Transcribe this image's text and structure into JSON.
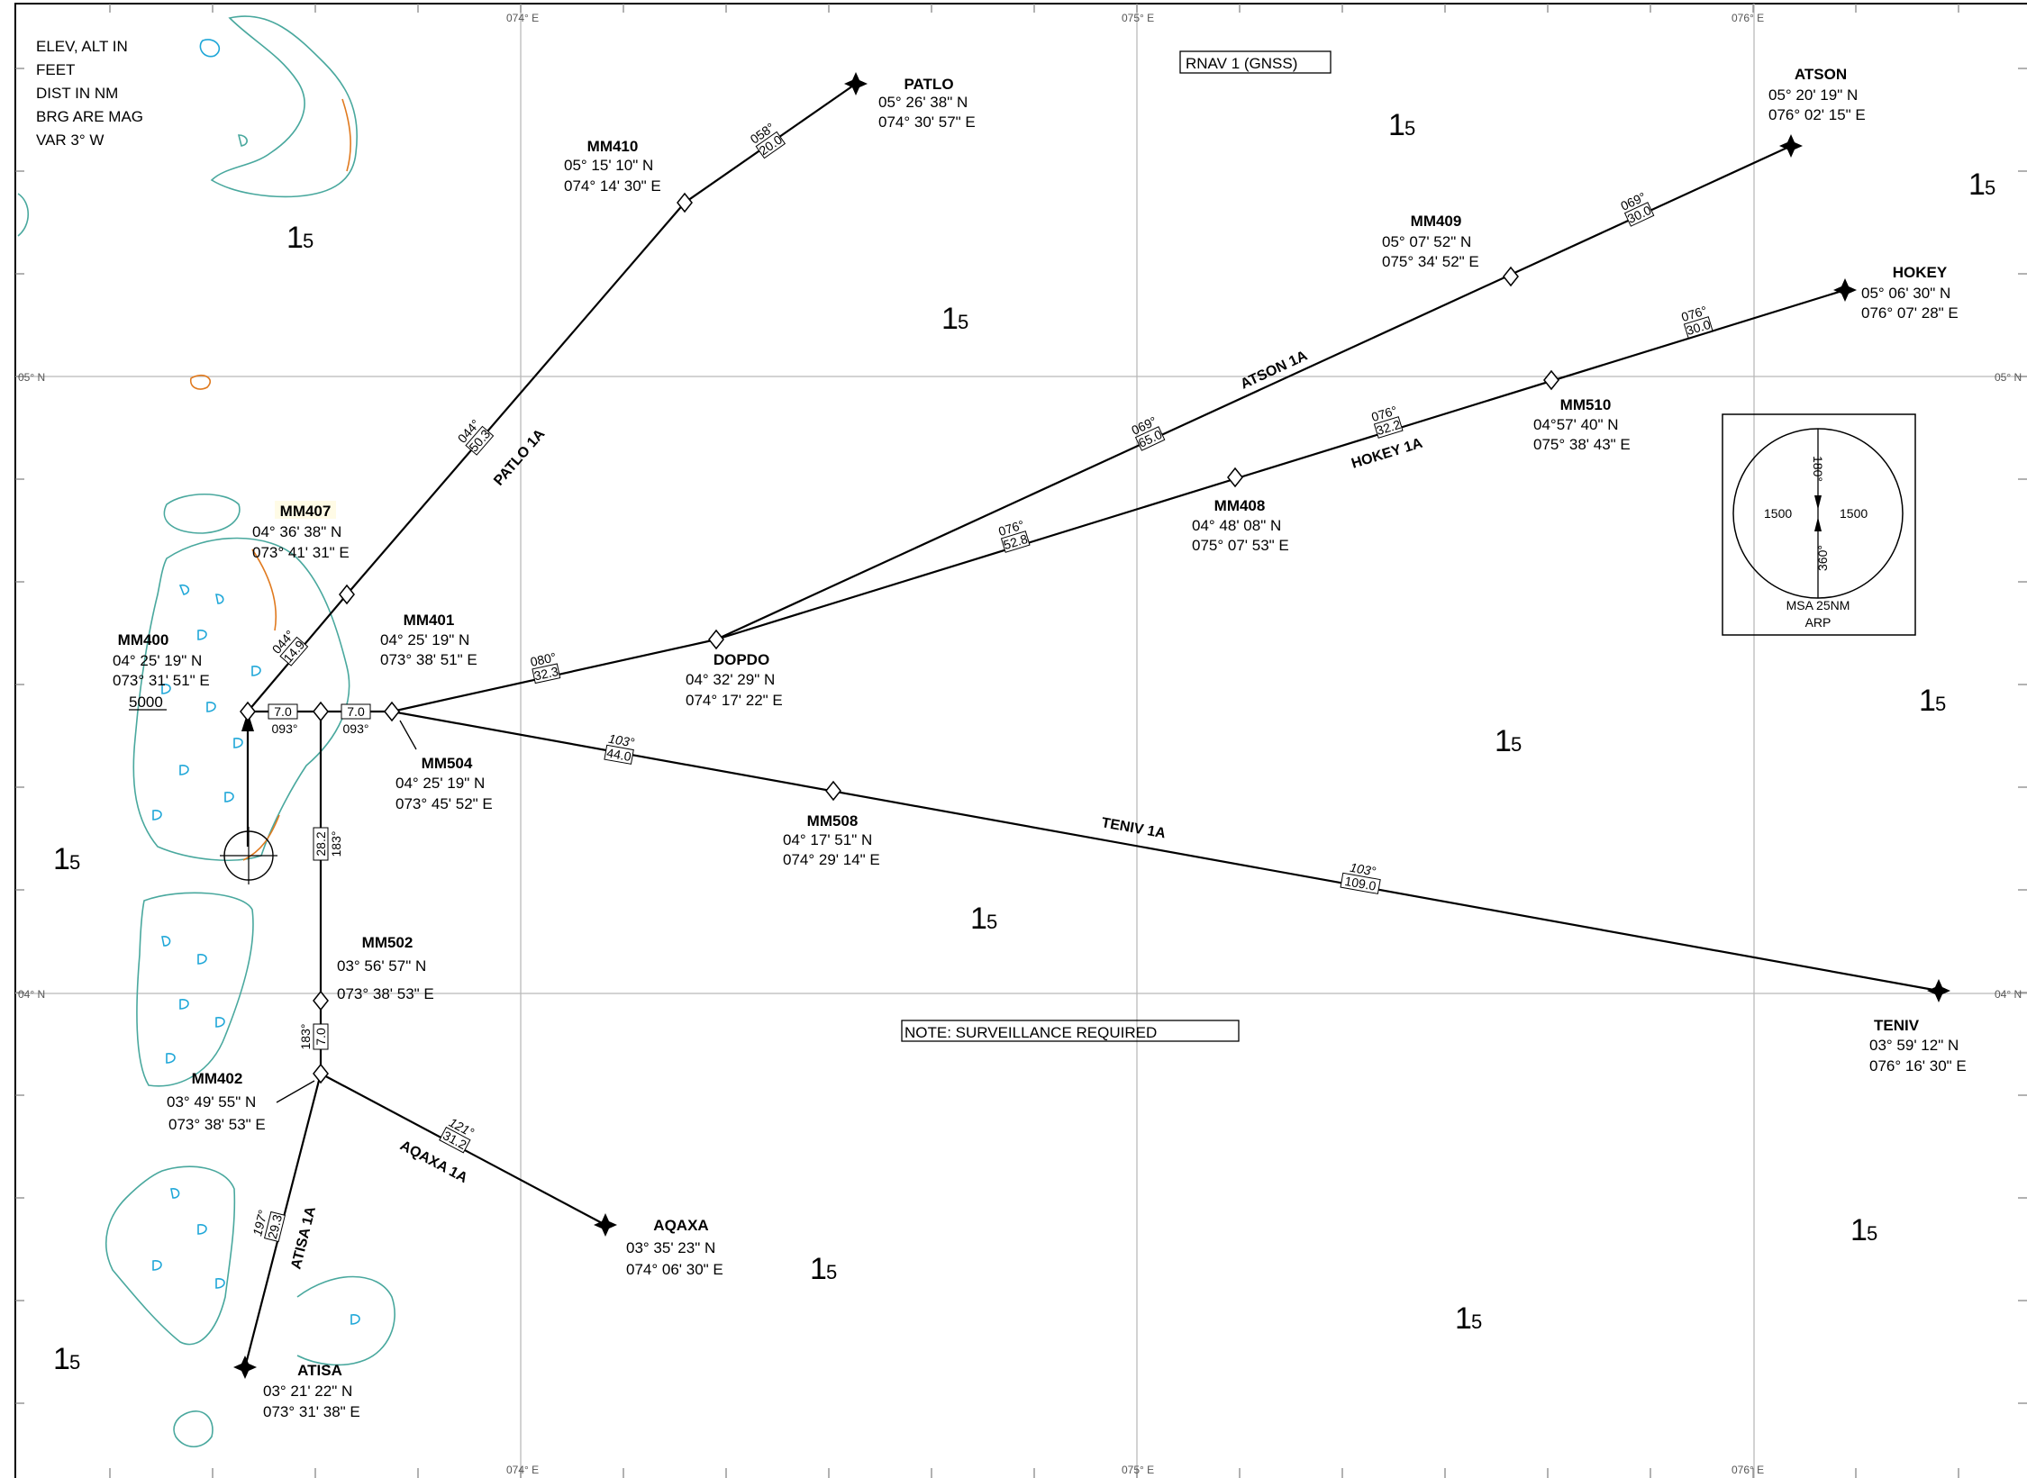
{
  "grid_labels": {
    "lon_074": "074° E",
    "lon_075": "075° E",
    "lon_076": "076° E",
    "lat_05": "05° N",
    "lat_04": "04° N"
  },
  "legend": {
    "lines": [
      "ELEV, ALT IN",
      "FEET",
      "DIST IN NM",
      "BRG ARE MAG",
      "VAR 3° W"
    ]
  },
  "header": {
    "nav_spec": "RNAV 1 (GNSS)"
  },
  "note": "NOTE: SURVEILLANCE REQUIRED",
  "msa": {
    "sector_1_alt": "1500",
    "sector_2_alt": "1500",
    "bearing_top": "180°",
    "bearing_bottom": "360°",
    "caption_1": "MSA 25NM",
    "caption_2": "ARP"
  },
  "waypoints": {
    "patlo": {
      "name": "PATLO",
      "lat": "05° 26' 38\" N",
      "lon": "074° 30' 57\" E"
    },
    "mm410": {
      "name": "MM410",
      "lat": "05° 15' 10\" N",
      "lon": "074° 14' 30\" E"
    },
    "atson": {
      "name": "ATSON",
      "lat": "05° 20' 19\" N",
      "lon": "076° 02' 15\" E"
    },
    "mm409": {
      "name": "MM409",
      "lat": "05° 07' 52\" N",
      "lon": "075° 34' 52\" E"
    },
    "hokey": {
      "name": "HOKEY",
      "lat": "05° 06' 30\" N",
      "lon": "076° 07' 28\" E"
    },
    "mm510": {
      "name": "MM510",
      "lat": "04°57' 40\" N",
      "lon": "075° 38' 43\" E"
    },
    "mm408": {
      "name": "MM408",
      "lat": "04° 48' 08\" N",
      "lon": "075° 07' 53\" E"
    },
    "mm407": {
      "name": "MM407",
      "lat": "04° 36' 38\" N",
      "lon": "073° 41' 31\" E"
    },
    "mm401": {
      "name": "MM401",
      "lat": "04° 25' 19\" N",
      "lon": "073° 38' 51\" E"
    },
    "mm400": {
      "name": "MM400",
      "lat": "04° 25' 19\" N",
      "lon": "073° 31' 51\" E",
      "alt": "5000"
    },
    "dopdo": {
      "name": "DOPDO",
      "lat": "04° 32' 29\" N",
      "lon": "074° 17' 22\" E"
    },
    "mm504": {
      "name": "MM504",
      "lat": "04° 25' 19\" N",
      "lon": "073° 45' 52\" E"
    },
    "mm508": {
      "name": "MM508",
      "lat": "04° 17' 51\" N",
      "lon": "074° 29' 14\" E"
    },
    "mm502": {
      "name": "MM502",
      "lat": "03° 56' 57\" N",
      "lon": "073° 38' 53\" E"
    },
    "mm402": {
      "name": "MM402",
      "lat": "03° 49' 55\" N",
      "lon": "073° 38' 53\" E"
    },
    "teniv": {
      "name": "TENIV",
      "lat": "03° 59' 12\" N",
      "lon": "076° 16' 30\" E"
    },
    "aqaxa": {
      "name": "AQAXA",
      "lat": "03° 35' 23\" N",
      "lon": "074° 06' 30\" E"
    },
    "atisa": {
      "name": "ATISA",
      "lat": "03° 21' 22\" N",
      "lon": "073° 31' 38\" E"
    }
  },
  "routes": {
    "patlo": "PATLO 1A",
    "atson": "ATSON 1A",
    "hokey": "HOKEY 1A",
    "teniv": "TENIV 1A",
    "aqaxa": "AQAXA 1A",
    "atisa": "ATISA 1A"
  },
  "legs": {
    "mm407_mm410_brg": "044°",
    "mm407_mm410_dist": "50.3",
    "mm400_mm407_brg": "044°",
    "mm400_mm407_dist": "14.9",
    "mm410_patlo_brg": "058°",
    "mm410_patlo_dist": "20.0",
    "dopdo_mm409_brg": "069°",
    "dopdo_mm409_dist": "65.0",
    "mm409_atson_brg": "069°",
    "mm409_atson_dist": "30.0",
    "dopdo_mm408_brg": "076°",
    "dopdo_mm408_dist": "52.8",
    "mm408_mm510_brg": "076°",
    "mm408_mm510_dist": "32.2",
    "mm510_hokey_brg": "076°",
    "mm510_hokey_dist": "30.0",
    "mm504_dopdo_brg": "080°",
    "mm504_dopdo_dist": "32.3",
    "mm400_mm401_dist": "7.0",
    "mm400_mm401_brg": "093°",
    "mm401_mm504_dist": "7.0",
    "mm401_mm504_brg": "093°",
    "mm504_mm508_brg": "103°",
    "mm504_mm508_dist": "44.0",
    "mm508_teniv_brg": "103°",
    "mm508_teniv_dist": "109.0",
    "mm401_mm502_dist": "28.2",
    "mm401_mm502_brg": "183°",
    "mm502_mm402_brg": "183°",
    "mm502_mm402_dist": "7.0",
    "mm402_aqaxa_brg": "121°",
    "mm402_aqaxa_dist": "31.2",
    "mm402_atisa_brg": "197°",
    "mm402_atisa_dist": "29.3"
  },
  "mora": {
    "big": "1",
    "small": "5"
  }
}
